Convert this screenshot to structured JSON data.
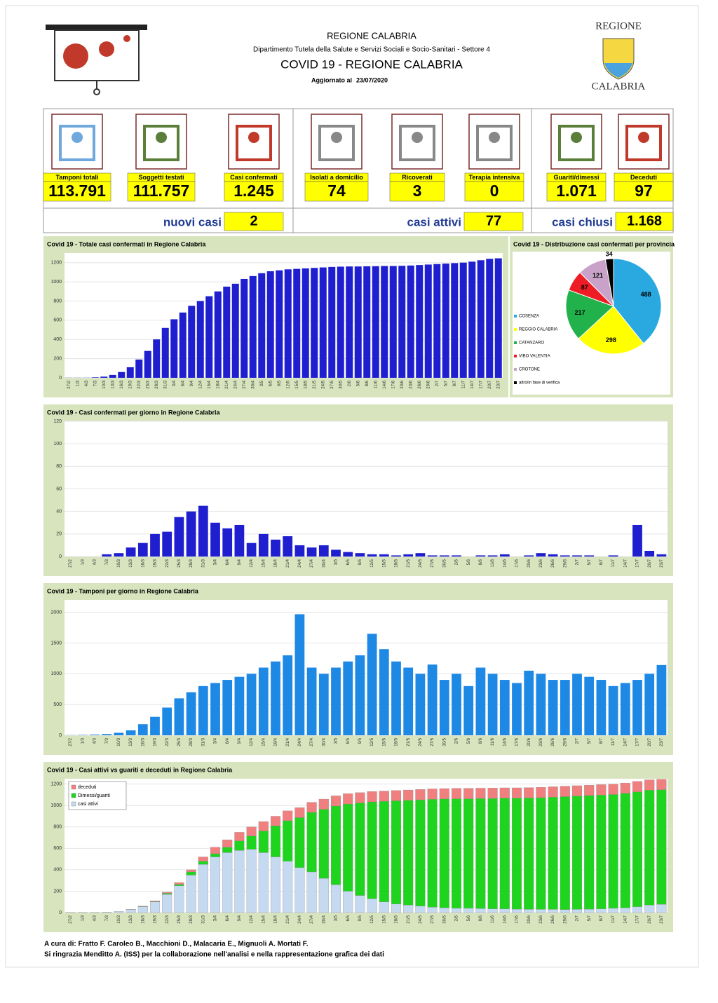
{
  "header": {
    "region": "REGIONE CALABRIA",
    "department": "Dipartimento Tutela della Salute e Servizi Sociali e Socio-Sanitari - Settore 4",
    "title": "COVID 19 - REGIONE CALABRIA",
    "updated_label": "Aggiornato al",
    "updated_date": "23/07/2020",
    "logo_top": "REGIONE",
    "logo_bottom": "CALABRIA"
  },
  "kpis": [
    {
      "label": "Tamponi totali",
      "value": "113.791"
    },
    {
      "label": "Soggetti testati",
      "value": "111.757"
    },
    {
      "label": "Casi confermati",
      "value": "1.245"
    },
    {
      "label": "Isolati a domicilio",
      "value": "74"
    },
    {
      "label": "Ricoverati",
      "value": "3"
    },
    {
      "label": "Terapia intensiva",
      "value": "0"
    },
    {
      "label": "Guariti/dimessi",
      "value": "1.071"
    },
    {
      "label": "Deceduti",
      "value": "97"
    }
  ],
  "summaries": [
    {
      "label": "nuovi casi",
      "value": "2"
    },
    {
      "label": "casi attivi",
      "value": "77"
    },
    {
      "label": "casi chiusi",
      "value": "1.168"
    }
  ],
  "chart_data": [
    {
      "type": "bar",
      "title": "Covid 19 - Totale casi confermati in Regione Calabria",
      "color": "#1f1fd0",
      "categories": [
        "27/2",
        "1/3",
        "4/3",
        "7/3",
        "10/3",
        "13/3",
        "16/3",
        "19/3",
        "22/3",
        "25/3",
        "28/3",
        "31/3",
        "3/4",
        "6/4",
        "9/4",
        "12/4",
        "15/4",
        "18/4",
        "21/4",
        "24/4",
        "27/4",
        "30/4",
        "3/5",
        "6/5",
        "9/5",
        "12/5",
        "15/5",
        "18/5",
        "21/5",
        "24/5",
        "27/5",
        "30/5",
        "2/6",
        "5/6",
        "8/6",
        "11/6",
        "14/6",
        "17/6",
        "20/6",
        "23/6",
        "26/6",
        "29/6",
        "2/7",
        "5/7",
        "8/7",
        "11/7",
        "14/7",
        "17/7",
        "20/7",
        "23/7"
      ],
      "values": [
        1,
        1,
        1,
        5,
        12,
        30,
        60,
        110,
        190,
        280,
        400,
        520,
        610,
        680,
        750,
        800,
        850,
        900,
        950,
        980,
        1030,
        1060,
        1090,
        1110,
        1120,
        1130,
        1135,
        1140,
        1145,
        1150,
        1155,
        1158,
        1160,
        1160,
        1162,
        1163,
        1165,
        1165,
        1167,
        1170,
        1175,
        1180,
        1185,
        1190,
        1195,
        1200,
        1210,
        1225,
        1240,
        1245
      ],
      "ylim": [
        0,
        1300
      ],
      "yticks": [
        0,
        200,
        400,
        600,
        800,
        1000,
        1200
      ]
    },
    {
      "type": "pie",
      "title": "Covid 19 - Distribuzione casi confermati per provincia",
      "categories": [
        "COSENZA",
        "REGGIO CALABRIA",
        "CATANZARO",
        "VIBO VALENTIA",
        "CROTONE",
        "altro/in fase di verifica"
      ],
      "values": [
        488,
        298,
        217,
        87,
        121,
        34
      ],
      "colors": [
        "#29a9e0",
        "#ffff00",
        "#22b24c",
        "#ee1c25",
        "#c8a2c8",
        "#000000"
      ]
    },
    {
      "type": "bar",
      "title": "Covid 19 - Casi confermati per giorno in Regione Calabria",
      "color": "#1f1fd0",
      "categories": [
        "27/2",
        "1/3",
        "4/3",
        "7/3",
        "10/3",
        "13/3",
        "16/3",
        "19/3",
        "22/3",
        "25/3",
        "28/3",
        "31/3",
        "3/4",
        "6/4",
        "9/4",
        "12/4",
        "15/4",
        "18/4",
        "21/4",
        "24/4",
        "27/4",
        "30/4",
        "3/5",
        "6/5",
        "9/5",
        "12/5",
        "15/5",
        "18/5",
        "21/5",
        "24/5",
        "27/5",
        "30/5",
        "2/6",
        "5/6",
        "8/6",
        "11/6",
        "14/6",
        "17/6",
        "20/6",
        "23/6",
        "26/6",
        "29/6",
        "2/7",
        "5/7",
        "8/7",
        "11/7",
        "14/7",
        "17/7",
        "20/7",
        "23/7"
      ],
      "values": [
        0,
        0,
        0,
        2,
        3,
        8,
        12,
        20,
        22,
        35,
        40,
        45,
        30,
        25,
        28,
        12,
        20,
        15,
        18,
        10,
        8,
        10,
        6,
        4,
        3,
        2,
        2,
        1,
        2,
        3,
        1,
        1,
        1,
        0,
        1,
        1,
        2,
        0,
        1,
        3,
        2,
        1,
        1,
        1,
        0,
        1,
        0,
        28,
        5,
        2
      ],
      "ylim": [
        0,
        120
      ],
      "yticks": [
        0,
        20,
        40,
        60,
        80,
        100,
        120
      ]
    },
    {
      "type": "bar",
      "title": "Covid 19 - Tamponi per giorno in Regione Calabria",
      "color": "#1e88e5",
      "categories": [
        "27/2",
        "1/3",
        "4/3",
        "7/3",
        "10/3",
        "13/3",
        "16/3",
        "19/3",
        "22/3",
        "25/3",
        "28/3",
        "31/3",
        "3/4",
        "6/4",
        "9/4",
        "12/4",
        "15/4",
        "18/4",
        "21/4",
        "24/4",
        "27/4",
        "30/4",
        "3/5",
        "6/5",
        "9/5",
        "12/5",
        "15/5",
        "18/5",
        "21/5",
        "24/5",
        "27/5",
        "30/5",
        "2/6",
        "5/6",
        "8/6",
        "11/6",
        "14/6",
        "17/6",
        "20/6",
        "23/6",
        "26/6",
        "29/6",
        "2/7",
        "5/7",
        "8/7",
        "11/7",
        "14/7",
        "17/7",
        "20/7",
        "23/7"
      ],
      "values": [
        2,
        5,
        10,
        20,
        40,
        80,
        180,
        300,
        450,
        600,
        700,
        800,
        850,
        900,
        950,
        1000,
        1100,
        1200,
        1300,
        1968,
        1100,
        1000,
        1100,
        1200,
        1300,
        1651,
        1400,
        1200,
        1100,
        1000,
        1150,
        900,
        1000,
        800,
        1100,
        1000,
        900,
        850,
        1050,
        1000,
        900,
        900,
        1000,
        950,
        900,
        800,
        850,
        900,
        1000,
        1142
      ],
      "ylim": [
        0,
        2200
      ],
      "yticks": [
        0,
        500,
        1000,
        1500,
        2000
      ]
    },
    {
      "type": "stacked_bar",
      "title": "Covid 19 - Casi attivi vs guariti e deceduti in Regione Calabria",
      "legend": "upper left",
      "categories": [
        "27/2",
        "1/3",
        "4/3",
        "7/3",
        "10/3",
        "13/3",
        "16/3",
        "19/3",
        "22/3",
        "25/3",
        "28/3",
        "31/3",
        "3/4",
        "6/4",
        "9/4",
        "12/4",
        "15/4",
        "18/4",
        "21/4",
        "24/4",
        "27/4",
        "30/4",
        "3/5",
        "6/5",
        "9/5",
        "12/5",
        "15/5",
        "18/5",
        "21/5",
        "24/5",
        "27/5",
        "30/5",
        "2/6",
        "5/6",
        "8/6",
        "11/6",
        "14/6",
        "17/6",
        "20/6",
        "23/6",
        "26/6",
        "29/6",
        "2/7",
        "5/7",
        "8/7",
        "11/7",
        "14/7",
        "17/7",
        "20/7",
        "23/7"
      ],
      "series": [
        {
          "name": "casi attivi",
          "color": "#c5d9f1",
          "values": [
            1,
            1,
            1,
            5,
            12,
            28,
            55,
            100,
            170,
            250,
            350,
            450,
            520,
            560,
            580,
            590,
            560,
            520,
            480,
            420,
            380,
            320,
            260,
            200,
            160,
            130,
            100,
            80,
            70,
            60,
            50,
            45,
            40,
            40,
            38,
            35,
            34,
            32,
            30,
            30,
            30,
            28,
            30,
            32,
            35,
            40,
            45,
            55,
            70,
            77
          ]
        },
        {
          "name": "Dimessi/guariti",
          "color": "#1ed41e",
          "values": [
            0,
            0,
            0,
            0,
            0,
            1,
            2,
            4,
            10,
            14,
            30,
            30,
            30,
            50,
            90,
            125,
            202,
            290,
            378,
            467,
            556,
            645,
            735,
            814,
            864,
            904,
            939,
            964,
            978,
            993,
            1008,
            1016,
            1023,
            1023,
            1027,
            1031,
            1034,
            1036,
            1040,
            1043,
            1048,
            1055,
            1058,
            1061,
            1063,
            1063,
            1068,
            1073,
            1073,
            1071
          ]
        },
        {
          "name": "deceduti",
          "color": "#f08080",
          "values": [
            0,
            0,
            0,
            0,
            0,
            1,
            3,
            6,
            10,
            16,
            20,
            40,
            60,
            70,
            80,
            85,
            88,
            90,
            92,
            93,
            94,
            95,
            95,
            96,
            96,
            96,
            96,
            96,
            97,
            97,
            97,
            97,
            97,
            97,
            97,
            97,
            97,
            97,
            97,
            97,
            97,
            97,
            97,
            97,
            97,
            97,
            97,
            97,
            97,
            97
          ]
        }
      ],
      "ylim": [
        0,
        1250
      ],
      "yticks": [
        0,
        200,
        400,
        600,
        800,
        1000,
        1200
      ]
    }
  ],
  "footer": {
    "line1": "A cura di: Fratto F. Caroleo B., Macchioni D., Malacaria E., Mignuoli A. Mortati F.",
    "line2": "Si ringrazia Menditto A. (ISS) per la collaborazione nell'analisi e nella rappresentazione grafica dei dati"
  }
}
